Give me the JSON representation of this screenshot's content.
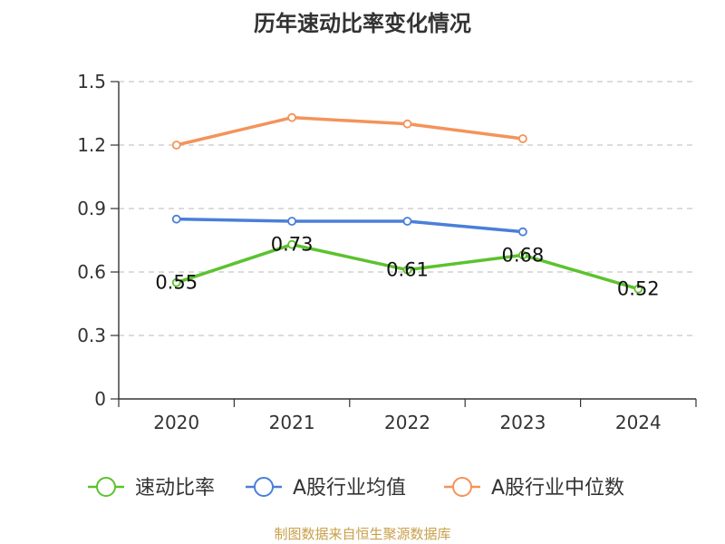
{
  "chart_data": {
    "type": "line",
    "title": "历年速动比率变化情况",
    "categories": [
      "2020",
      "2021",
      "2022",
      "2023",
      "2024"
    ],
    "yticks": [
      "0",
      "0.3",
      "0.6",
      "0.9",
      "1.2",
      "1.5"
    ],
    "ylim": [
      0,
      1.5
    ],
    "grid": true,
    "legend_position": "bottom",
    "series": [
      {
        "name": "速动比率",
        "color": "#5cc22e",
        "values": [
          0.55,
          0.73,
          0.61,
          0.68,
          0.52
        ],
        "labels": [
          "0.55",
          "0.73",
          "0.61",
          "0.68",
          "0.52"
        ]
      },
      {
        "name": "A股行业均值",
        "color": "#4a7fd8",
        "values": [
          0.85,
          0.84,
          0.84,
          0.79,
          null
        ]
      },
      {
        "name": "A股行业中位数",
        "color": "#f4935a",
        "values": [
          1.2,
          1.33,
          1.3,
          1.23,
          null
        ]
      }
    ]
  },
  "source": "制图数据来自恒生聚源数据库"
}
